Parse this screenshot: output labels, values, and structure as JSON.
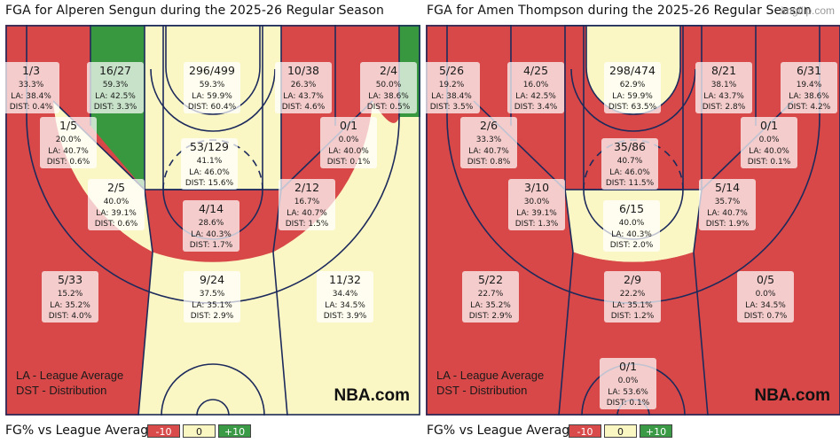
{
  "watermark": "imgflip.com",
  "legend": {
    "label": "FG% vs League Average",
    "neg": "-10",
    "zero": "0",
    "pos": "+10"
  },
  "colors": {
    "bad": "#d84848",
    "neutral": "#fbf7c4",
    "good": "#38983f",
    "lines": "#1d2a5c"
  },
  "chart_data": [
    {
      "type": "shot-chart",
      "title": "FGA for Alperen Sengun during the 2025-26 Regular Season",
      "notes": [
        "LA - League Average",
        "DST - Distribution"
      ],
      "brand": "NBA.com",
      "zones": [
        {
          "id": "left-corner-3",
          "fga": "1/3",
          "pct": "33.3%",
          "la": "LA: 38.4%",
          "dist": "DIST: 0.4%",
          "rating": "bad"
        },
        {
          "id": "left-mid-baseline",
          "fga": "16/27",
          "pct": "59.3%",
          "la": "LA: 42.5%",
          "dist": "DIST: 3.3%",
          "rating": "good"
        },
        {
          "id": "restricted-area",
          "fga": "296/499",
          "pct": "59.3%",
          "la": "LA: 59.9%",
          "dist": "DIST: 60.4%",
          "rating": "neutral"
        },
        {
          "id": "right-mid-baseline",
          "fga": "10/38",
          "pct": "26.3%",
          "la": "LA: 43.7%",
          "dist": "DIST: 4.6%",
          "rating": "bad"
        },
        {
          "id": "right-corner-3",
          "fga": "2/4",
          "pct": "50.0%",
          "la": "LA: 38.6%",
          "dist": "DIST: 0.5%",
          "rating": "good"
        },
        {
          "id": "left-short-mid",
          "fga": "1/5",
          "pct": "20.0%",
          "la": "LA: 40.7%",
          "dist": "DIST: 0.6%",
          "rating": "bad"
        },
        {
          "id": "paint-non-ra",
          "fga": "53/129",
          "pct": "41.1%",
          "la": "LA: 46.0%",
          "dist": "DIST: 15.6%",
          "rating": "neutral"
        },
        {
          "id": "right-short-mid",
          "fga": "0/1",
          "pct": "0.0%",
          "la": "LA: 40.0%",
          "dist": "DIST: 0.1%",
          "rating": "bad"
        },
        {
          "id": "left-wing-mid",
          "fga": "2/5",
          "pct": "40.0%",
          "la": "LA: 39.1%",
          "dist": "DIST: 0.6%",
          "rating": "neutral"
        },
        {
          "id": "right-wing-mid",
          "fga": "2/12",
          "pct": "16.7%",
          "la": "LA: 40.7%",
          "dist": "DIST: 1.5%",
          "rating": "bad"
        },
        {
          "id": "top-mid",
          "fga": "4/14",
          "pct": "28.6%",
          "la": "LA: 40.3%",
          "dist": "DIST: 1.7%",
          "rating": "bad"
        },
        {
          "id": "left-wing-3",
          "fga": "5/33",
          "pct": "15.2%",
          "la": "LA: 35.2%",
          "dist": "DIST: 4.0%",
          "rating": "bad"
        },
        {
          "id": "top-3",
          "fga": "9/24",
          "pct": "37.5%",
          "la": "LA: 35.1%",
          "dist": "DIST: 2.9%",
          "rating": "neutral"
        },
        {
          "id": "right-wing-3",
          "fga": "11/32",
          "pct": "34.4%",
          "la": "LA: 34.5%",
          "dist": "DIST: 3.9%",
          "rating": "neutral"
        }
      ]
    },
    {
      "type": "shot-chart",
      "title": "FGA for Amen Thompson during the 2025-26 Regular Season",
      "notes": [
        "LA - League Average",
        "DST - Distribution"
      ],
      "brand": "NBA.com",
      "zones": [
        {
          "id": "left-corner-3",
          "fga": "5/26",
          "pct": "19.2%",
          "la": "LA: 38.4%",
          "dist": "DIST: 3.5%",
          "rating": "bad"
        },
        {
          "id": "left-mid-baseline",
          "fga": "4/25",
          "pct": "16.0%",
          "la": "LA: 42.5%",
          "dist": "DIST: 3.4%",
          "rating": "bad"
        },
        {
          "id": "restricted-area",
          "fga": "298/474",
          "pct": "62.9%",
          "la": "LA: 59.9%",
          "dist": "DIST: 63.5%",
          "rating": "neutral"
        },
        {
          "id": "right-mid-baseline",
          "fga": "8/21",
          "pct": "38.1%",
          "la": "LA: 43.7%",
          "dist": "DIST: 2.8%",
          "rating": "bad"
        },
        {
          "id": "right-corner-3",
          "fga": "6/31",
          "pct": "19.4%",
          "la": "LA: 38.6%",
          "dist": "DIST: 4.2%",
          "rating": "bad"
        },
        {
          "id": "left-short-mid",
          "fga": "2/6",
          "pct": "33.3%",
          "la": "LA: 40.7%",
          "dist": "DIST: 0.8%",
          "rating": "bad"
        },
        {
          "id": "paint-non-ra",
          "fga": "35/86",
          "pct": "40.7%",
          "la": "LA: 46.0%",
          "dist": "DIST: 11.5%",
          "rating": "bad"
        },
        {
          "id": "right-short-mid",
          "fga": "0/1",
          "pct": "0.0%",
          "la": "LA: 40.0%",
          "dist": "DIST: 0.1%",
          "rating": "bad"
        },
        {
          "id": "left-wing-mid",
          "fga": "3/10",
          "pct": "30.0%",
          "la": "LA: 39.1%",
          "dist": "DIST: 1.3%",
          "rating": "bad"
        },
        {
          "id": "right-wing-mid",
          "fga": "5/14",
          "pct": "35.7%",
          "la": "LA: 40.7%",
          "dist": "DIST: 1.9%",
          "rating": "bad"
        },
        {
          "id": "top-mid",
          "fga": "6/15",
          "pct": "40.0%",
          "la": "LA: 40.3%",
          "dist": "DIST: 2.0%",
          "rating": "neutral"
        },
        {
          "id": "left-wing-3",
          "fga": "5/22",
          "pct": "22.7%",
          "la": "LA: 35.2%",
          "dist": "DIST: 2.9%",
          "rating": "bad"
        },
        {
          "id": "top-3",
          "fga": "2/9",
          "pct": "22.2%",
          "la": "LA: 35.1%",
          "dist": "DIST: 1.2%",
          "rating": "bad"
        },
        {
          "id": "right-wing-3",
          "fga": "0/5",
          "pct": "0.0%",
          "la": "LA: 34.5%",
          "dist": "DIST: 0.7%",
          "rating": "bad"
        },
        {
          "id": "backcourt",
          "fga": "0/1",
          "pct": "0.0%",
          "la": "LA: 53.6%",
          "dist": "DIST: 0.1%",
          "rating": "bad"
        }
      ]
    }
  ]
}
